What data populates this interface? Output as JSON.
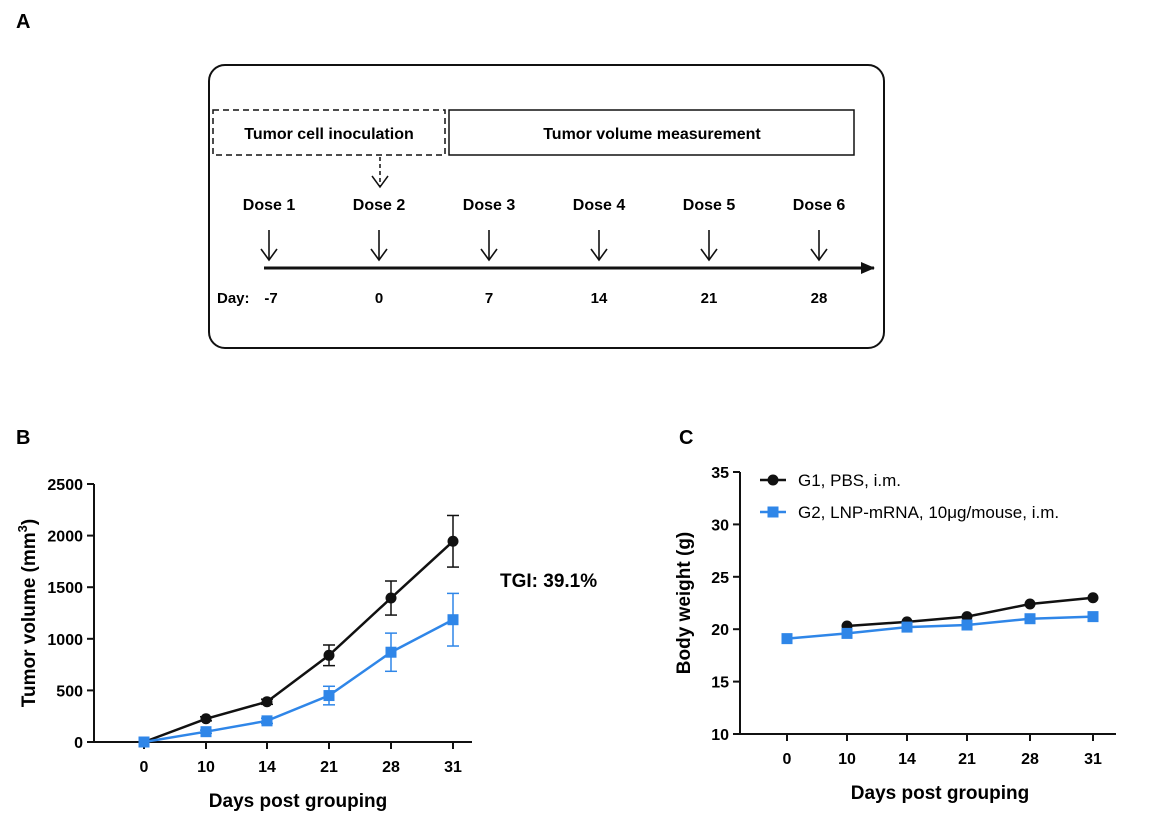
{
  "panel_a": {
    "label": "A",
    "inoculation_label": "Tumor cell inoculation",
    "measurement_label": "Tumor volume measurement",
    "day_label": "Day:",
    "doses": [
      {
        "label": "Dose 1",
        "day": "-7"
      },
      {
        "label": "Dose 2",
        "day": "0"
      },
      {
        "label": "Dose 3",
        "day": "7"
      },
      {
        "label": "Dose 4",
        "day": "14"
      },
      {
        "label": "Dose 5",
        "day": "21"
      },
      {
        "label": "Dose 6",
        "day": "28"
      }
    ]
  },
  "panel_b": {
    "label": "B",
    "annotation": "TGI: 39.1%"
  },
  "panel_c": {
    "label": "C"
  },
  "colors": {
    "g1": "#111111",
    "g2": "#2f86e8",
    "axis": "#111111"
  },
  "chart_data": [
    {
      "type": "line",
      "id": "tumor-volume",
      "xlabel": "Days post grouping",
      "ylabel": "Tumor volume (mm",
      "ylabel_sup": "3",
      "ylabel_end": ")",
      "categories": [
        "0",
        "10",
        "14",
        "21",
        "28",
        "31"
      ],
      "ylim": [
        0,
        2500
      ],
      "yticks": [
        0,
        500,
        1000,
        1500,
        2000,
        2500
      ],
      "series": [
        {
          "values": [
            0,
            225,
            390,
            840,
            1395,
            1945
          ],
          "errors": [
            0,
            20,
            25,
            100,
            165,
            250
          ],
          "marker": "circle",
          "color": "#111111"
        },
        {
          "values": [
            0,
            100,
            205,
            450,
            870,
            1185
          ],
          "errors": [
            0,
            15,
            25,
            90,
            185,
            255
          ],
          "marker": "square",
          "color": "#2f86e8"
        }
      ],
      "annotations": [
        "TGI: 39.1%"
      ]
    },
    {
      "type": "line",
      "id": "body-weight",
      "xlabel": "Days post grouping",
      "ylabel": "Body weight (g)",
      "categories": [
        "0",
        "10",
        "14",
        "21",
        "28",
        "31"
      ],
      "ylim": [
        10,
        35
      ],
      "yticks": [
        10,
        15,
        20,
        25,
        30,
        35
      ],
      "legend_position": "top-left",
      "series": [
        {
          "name": "G1, PBS, i.m.",
          "values": [
            null,
            20.3,
            20.7,
            21.2,
            22.4,
            23.0
          ],
          "marker": "circle",
          "color": "#111111"
        },
        {
          "name": "G2, LNP-mRNA, 10μg/mouse, i.m.",
          "values": [
            19.1,
            19.6,
            20.2,
            20.4,
            21.0,
            21.2
          ],
          "marker": "square",
          "color": "#2f86e8"
        }
      ]
    }
  ]
}
